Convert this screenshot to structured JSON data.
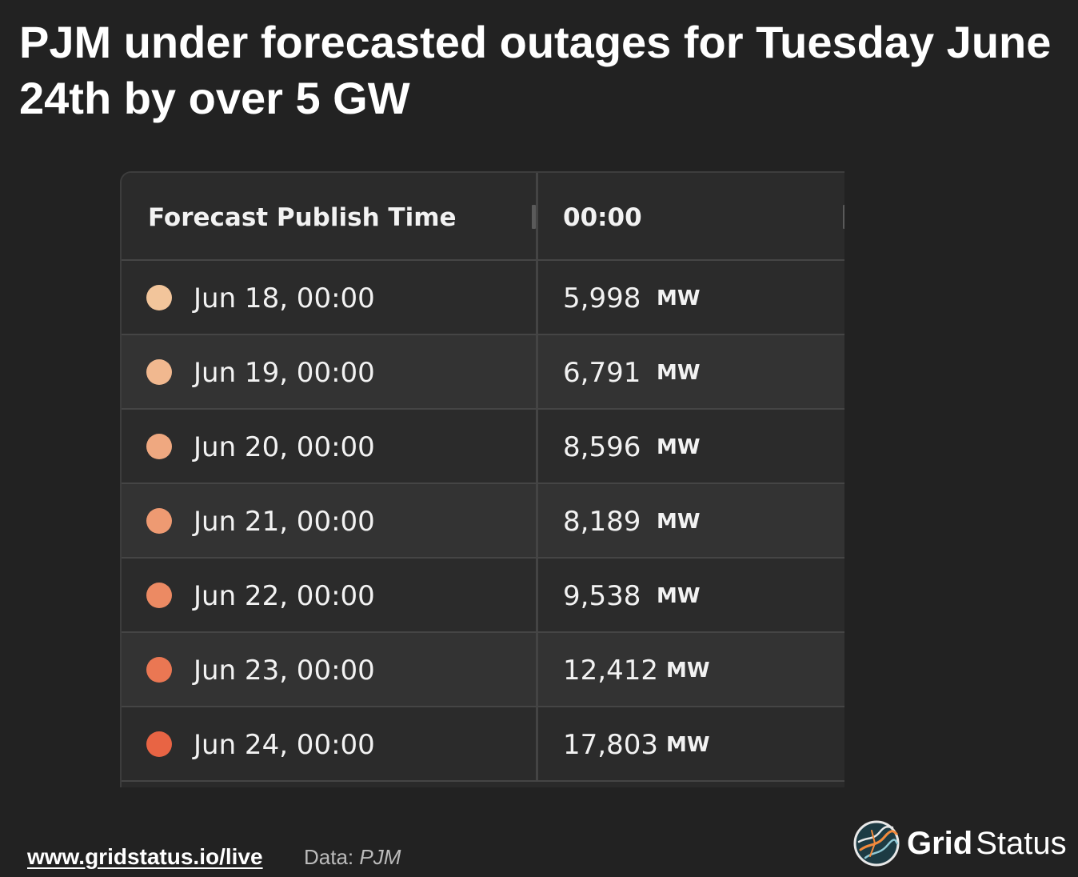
{
  "headline": "PJM under forecasted outages for Tuesday June 24th by over 5 GW",
  "table": {
    "headers": {
      "publish_time": "Forecast Publish Time",
      "hour": "00:00"
    },
    "rows": [
      {
        "publish_time": "Jun 18, 00:00",
        "value": "5,998",
        "unit": "MW",
        "dot_color": "#f2c59b"
      },
      {
        "publish_time": "Jun 19, 00:00",
        "value": "6,791",
        "unit": "MW",
        "dot_color": "#f1b88f"
      },
      {
        "publish_time": "Jun 20, 00:00",
        "value": "8,596",
        "unit": "MW",
        "dot_color": "#efa880"
      },
      {
        "publish_time": "Jun 21, 00:00",
        "value": "8,189",
        "unit": "MW",
        "dot_color": "#ee9a72"
      },
      {
        "publish_time": "Jun 22, 00:00",
        "value": "9,538",
        "unit": "MW",
        "dot_color": "#ec8a63"
      },
      {
        "publish_time": "Jun 23, 00:00",
        "value": "12,412",
        "unit": "MW",
        "dot_color": "#ea7753"
      },
      {
        "publish_time": "Jun 24, 00:00",
        "value": "17,803",
        "unit": "MW",
        "dot_color": "#e86444"
      }
    ]
  },
  "footer": {
    "link": "www.gridstatus.io/live",
    "source_label": "Data:",
    "source_name": "PJM"
  },
  "logo": {
    "name_bold": "Grid",
    "name_light": "Status"
  }
}
